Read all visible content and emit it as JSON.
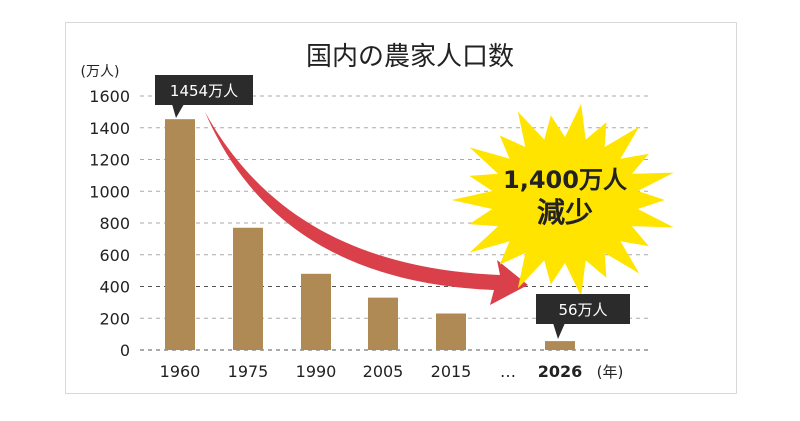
{
  "chart_data": {
    "type": "bar",
    "title": "国内の農家人口数",
    "ylabel": "(万人)",
    "xlabel": "(年)",
    "ylim": [
      0,
      1600
    ],
    "yticks": [
      0,
      200,
      400,
      600,
      800,
      1000,
      1200,
      1400,
      1600
    ],
    "grid": true,
    "categories": [
      "1960",
      "1975",
      "1990",
      "2005",
      "2015",
      "2026"
    ],
    "values": [
      1454,
      770,
      480,
      330,
      230,
      56
    ],
    "gap_marker": "…",
    "annotations": {
      "first": "1454万人",
      "last": "56万人",
      "burst_line1": "1,400万人",
      "burst_line2": "減少"
    },
    "colors": {
      "bar": "#b08a55",
      "arrow": "#d9404a",
      "burst": "#ffe400",
      "callout": "#2b2b2b"
    }
  }
}
